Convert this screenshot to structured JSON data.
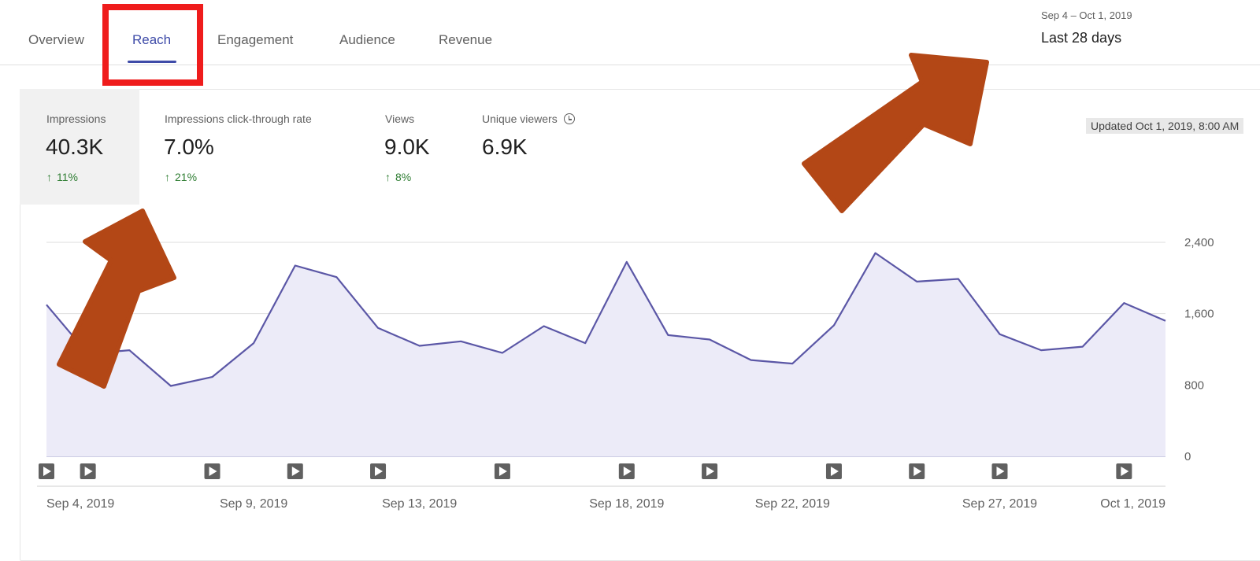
{
  "tabs": [
    {
      "label": "Overview"
    },
    {
      "label": "Reach"
    },
    {
      "label": "Engagement"
    },
    {
      "label": "Audience"
    },
    {
      "label": "Revenue"
    }
  ],
  "active_tab": "Reach",
  "date_selector": {
    "range": "Sep 4 – Oct 1, 2019",
    "period": "Last 28 days"
  },
  "updated_text": "Updated Oct 1, 2019, 8:00 AM",
  "metrics": [
    {
      "label": "Impressions",
      "value": "40.3K",
      "change": "11%"
    },
    {
      "label": "Impressions click-through rate",
      "value": "7.0%",
      "change": "21%"
    },
    {
      "label": "Views",
      "value": "9.0K",
      "change": "8%"
    },
    {
      "label": "Unique viewers",
      "value": "6.9K",
      "change": ""
    }
  ],
  "icons": {
    "change_up": "arrow-up-icon",
    "unique_viewers_info": "clock-icon",
    "video_marker": "play-icon"
  },
  "colors": {
    "accent": "#3e4ba8",
    "line": "#5b57a6",
    "area_fill": "#ecebf8",
    "positive": "#2e7d32",
    "highlight_box": "#ef1c1c",
    "annotation_arrow": "#b34716"
  },
  "chart_data": {
    "type": "area",
    "x": [
      "2019-09-04",
      "2019-09-05",
      "2019-09-06",
      "2019-09-07",
      "2019-09-08",
      "2019-09-09",
      "2019-09-10",
      "2019-09-11",
      "2019-09-12",
      "2019-09-13",
      "2019-09-14",
      "2019-09-15",
      "2019-09-16",
      "2019-09-17",
      "2019-09-18",
      "2019-09-19",
      "2019-09-20",
      "2019-09-21",
      "2019-09-22",
      "2019-09-23",
      "2019-09-24",
      "2019-09-25",
      "2019-09-26",
      "2019-09-27",
      "2019-09-28",
      "2019-09-29",
      "2019-09-30",
      "2019-10-01"
    ],
    "values": [
      1700,
      1150,
      1190,
      790,
      890,
      1270,
      2140,
      2010,
      1440,
      1240,
      1290,
      1160,
      1460,
      1270,
      2180,
      1360,
      1310,
      1080,
      1040,
      1470,
      2280,
      1960,
      1990,
      1370,
      1190,
      1230,
      1720,
      1520
    ],
    "x_tick_labels": [
      "Sep 4, 2019",
      "Sep 9, 2019",
      "Sep 13, 2019",
      "Sep 18, 2019",
      "Sep 22, 2019",
      "Sep 27, 2019",
      "Oct 1, 2019"
    ],
    "x_tick_dates": [
      "2019-09-04",
      "2019-09-09",
      "2019-09-13",
      "2019-09-18",
      "2019-09-22",
      "2019-09-27",
      "2019-10-01"
    ],
    "y_ticks": [
      0,
      800,
      1600,
      2400
    ],
    "y_tick_labels": [
      "0",
      "800",
      "1,600",
      "2,400"
    ],
    "ylim": [
      0,
      2400
    ],
    "grid": true,
    "video_markers": [
      "2019-09-04",
      "2019-09-05",
      "2019-09-08",
      "2019-09-10",
      "2019-09-12",
      "2019-09-15",
      "2019-09-18",
      "2019-09-20",
      "2019-09-23",
      "2019-09-25",
      "2019-09-27",
      "2019-09-30"
    ]
  }
}
